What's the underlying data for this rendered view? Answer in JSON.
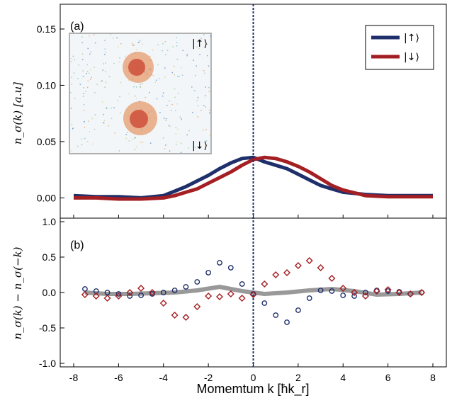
{
  "chart_data": [
    {
      "panel_label": "(a)",
      "type": "line",
      "ylabel": "n_σ(k) [a.u]",
      "xlim": [
        -8.6,
        8.6
      ],
      "ylim": [
        -0.018,
        0.172
      ],
      "xticks": [
        -8,
        -6,
        -4,
        -2,
        0,
        2,
        4,
        6,
        8
      ],
      "yticks": [
        "0.00",
        "0.05",
        "0.10",
        "0.15"
      ],
      "yticks_values": [
        0,
        0.05,
        0.1,
        0.15
      ],
      "vline_x": 0,
      "legend": {
        "position": "top-right",
        "entries": [
          "|↑⟩",
          "|↓⟩"
        ]
      },
      "inset": {
        "position": "top-left",
        "labels": [
          "|↑⟩",
          "|↓⟩"
        ]
      },
      "colors": {
        "up": "#1f2f6b",
        "down": "#a31f24"
      },
      "series": [
        {
          "name": "|↑⟩",
          "x": [
            -8,
            -7,
            -6,
            -5,
            -4,
            -3.5,
            -3,
            -2.5,
            -2,
            -1.5,
            -1,
            -0.5,
            0,
            0.5,
            1,
            1.5,
            2,
            2.5,
            3,
            3.5,
            4,
            5,
            6,
            7,
            8
          ],
          "y": [
            0.002,
            0.001,
            0.001,
            0.0,
            0.002,
            0.006,
            0.01,
            0.015,
            0.02,
            0.026,
            0.031,
            0.035,
            0.036,
            0.032,
            0.029,
            0.026,
            0.021,
            0.016,
            0.011,
            0.008,
            0.005,
            0.003,
            0.002,
            0.002,
            0.002
          ]
        },
        {
          "name": "|↓⟩",
          "x": [
            -8,
            -7,
            -6,
            -5,
            -4,
            -3.5,
            -3,
            -2.5,
            -2,
            -1.5,
            -1,
            -0.5,
            0,
            0.5,
            1,
            1.5,
            2,
            2.5,
            3,
            3.5,
            4,
            5,
            6,
            7,
            8
          ],
          "y": [
            0.0,
            0.0,
            -0.001,
            -0.001,
            0.0,
            0.002,
            0.005,
            0.008,
            0.013,
            0.018,
            0.023,
            0.029,
            0.034,
            0.036,
            0.035,
            0.032,
            0.028,
            0.023,
            0.017,
            0.011,
            0.007,
            0.002,
            0.001,
            0.001,
            0.001
          ]
        }
      ]
    },
    {
      "panel_label": "(b)",
      "type": "scatter",
      "ylabel": "n_σ(k) − n_σ(−k)",
      "xlabel": "Momemtum k [ħk_r]",
      "xlim": [
        -8.6,
        8.6
      ],
      "ylim": [
        -1.05,
        1.05
      ],
      "xticks": [
        -8,
        -6,
        -4,
        -2,
        0,
        2,
        4,
        6,
        8
      ],
      "yticks": [
        "-1.0",
        "-0.5",
        "0.0",
        "0.5",
        "1.0"
      ],
      "yticks_values": [
        -1.0,
        -0.5,
        0.0,
        0.5,
        1.0
      ],
      "colors": {
        "up": "#1f2f6b",
        "down": "#a31f24",
        "sum": "#999999"
      },
      "series": [
        {
          "name": "|↑⟩",
          "marker": "circle",
          "x": [
            -7.5,
            -7,
            -6.5,
            -6,
            -5.5,
            -5,
            -4.5,
            -4,
            -3.5,
            -3,
            -2.5,
            -2,
            -1.5,
            -1,
            -0.5,
            0,
            0.5,
            1,
            1.5,
            2,
            2.5,
            3,
            3.5,
            4,
            4.5,
            5,
            5.5,
            6,
            6.5,
            7,
            7.5
          ],
          "y": [
            0.05,
            0.02,
            0.0,
            -0.02,
            -0.05,
            -0.04,
            -0.02,
            0.0,
            0.03,
            0.08,
            0.15,
            0.28,
            0.42,
            0.35,
            0.12,
            -0.02,
            -0.15,
            -0.32,
            -0.42,
            -0.25,
            -0.08,
            0.03,
            0.02,
            -0.04,
            -0.05,
            0.0,
            0.03,
            0.02,
            0.01,
            -0.02,
            0.0
          ]
        },
        {
          "name": "|↓⟩",
          "marker": "diamond",
          "x": [
            -7.5,
            -7,
            -6.5,
            -6,
            -5.5,
            -5,
            -4.5,
            -4,
            -3.5,
            -3,
            -2.5,
            -2,
            -1.5,
            -1,
            -0.5,
            0,
            0.5,
            1,
            1.5,
            2,
            2.5,
            3,
            3.5,
            4,
            4.5,
            5,
            5.5,
            6,
            6.5,
            7,
            7.5
          ],
          "y": [
            -0.03,
            -0.05,
            -0.08,
            -0.05,
            0.0,
            0.06,
            0.0,
            -0.15,
            -0.32,
            -0.35,
            -0.2,
            -0.05,
            -0.06,
            -0.02,
            -0.08,
            -0.03,
            0.12,
            0.25,
            0.28,
            0.38,
            0.45,
            0.35,
            0.2,
            0.06,
            0.0,
            -0.05,
            0.02,
            0.04,
            0.0,
            -0.02,
            0.0
          ]
        },
        {
          "name": "sum",
          "type": "line",
          "x": [
            -7.5,
            -6.5,
            -5.5,
            -4.5,
            -3.5,
            -2.5,
            -1.5,
            -0.5,
            0.5,
            1.5,
            2.5,
            3.5,
            4.5,
            5.5,
            6.5,
            7.5
          ],
          "y": [
            0.0,
            -0.02,
            -0.02,
            -0.01,
            0.0,
            0.03,
            0.08,
            0.02,
            -0.02,
            0.0,
            0.03,
            0.05,
            0.02,
            -0.03,
            -0.02,
            0.0
          ]
        }
      ]
    }
  ]
}
